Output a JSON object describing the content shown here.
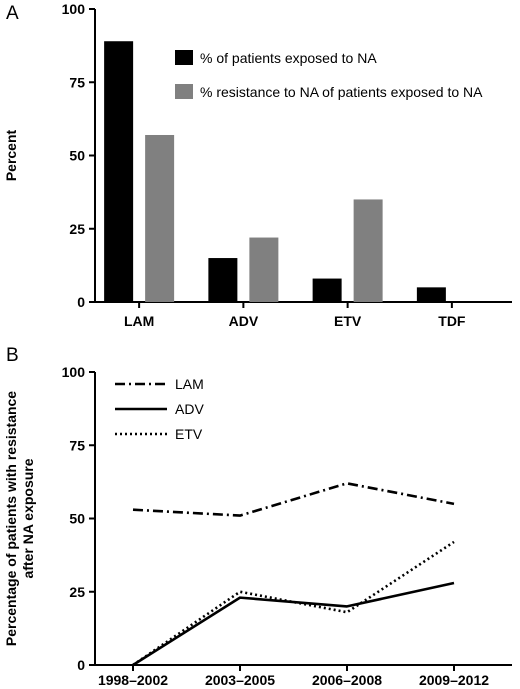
{
  "panels": {
    "a_label": "A",
    "b_label": "B"
  },
  "chart_data": [
    {
      "type": "bar",
      "panel": "A",
      "categories": [
        "LAM",
        "ADV",
        "ETV",
        "TDF"
      ],
      "series": [
        {
          "name": "% of patients exposed to NA",
          "color": "#000000",
          "values": [
            89,
            15,
            8,
            5
          ]
        },
        {
          "name": "% resistance to NA of patients exposed to NA",
          "color": "#808080",
          "values": [
            57,
            22,
            35,
            0
          ]
        }
      ],
      "ylabel": "Percent",
      "xlabel": "",
      "ylim": [
        0,
        100
      ],
      "yticks": [
        0,
        25,
        50,
        75,
        100
      ],
      "grid": false,
      "legend": "top-right"
    },
    {
      "type": "line",
      "panel": "B",
      "categories": [
        "1998–2002",
        "2003–2005",
        "2006–2008",
        "2009–2012"
      ],
      "series": [
        {
          "name": "LAM",
          "style": "dash-dot",
          "color": "#000000",
          "values": [
            53,
            51,
            62,
            55
          ]
        },
        {
          "name": "ADV",
          "style": "solid",
          "color": "#000000",
          "values": [
            0,
            23,
            20,
            28
          ]
        },
        {
          "name": "ETV",
          "style": "dotted",
          "color": "#000000",
          "values": [
            0,
            25,
            18,
            42
          ]
        }
      ],
      "ylabel": "Percentage of patients with resistance after NA exposure",
      "ylabel_lines": [
        "Percentage of patients with resistance",
        "after NA exposure"
      ],
      "xlabel": "",
      "ylim": [
        0,
        100
      ],
      "yticks": [
        0,
        25,
        50,
        75,
        100
      ],
      "grid": false,
      "legend": "top-left"
    }
  ]
}
